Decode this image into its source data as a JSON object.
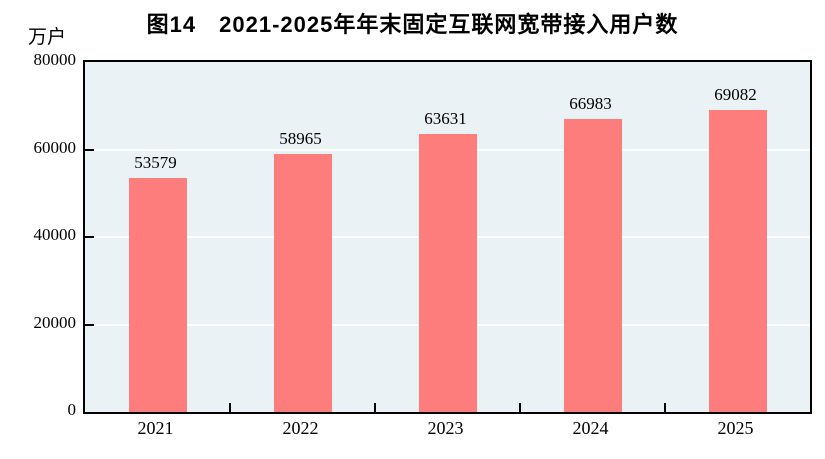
{
  "title": "图14　2021-2025年年末固定互联网宽带接入用户数",
  "unit_label": "万户",
  "chart_data": {
    "type": "bar",
    "title": "图14　2021-2025年年末固定互联网宽带接入用户数",
    "categories": [
      "2021",
      "2022",
      "2023",
      "2024",
      "2025"
    ],
    "values": [
      53579,
      58965,
      63631,
      66983,
      69082
    ],
    "xlabel": "",
    "ylabel": "万户",
    "ylim": [
      0,
      80000
    ],
    "yticks": [
      0,
      20000,
      40000,
      60000,
      80000
    ],
    "grid": true,
    "legend": "none",
    "data_labels": true,
    "colors": {
      "bar": "#fd7d7d",
      "plot_background": "#ebf2f6",
      "gridline": "#fbfdff",
      "axis": "#000000",
      "text": "#000000"
    }
  }
}
